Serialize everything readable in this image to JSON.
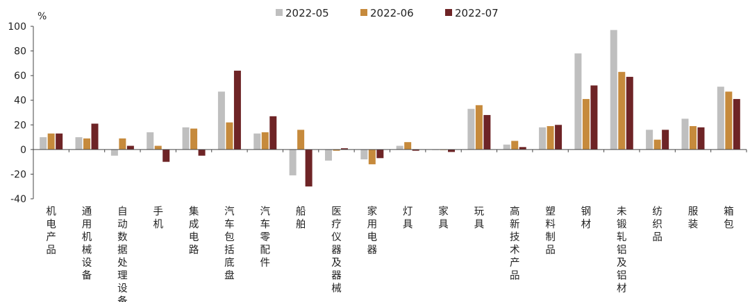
{
  "chart_data": {
    "type": "bar",
    "title": "",
    "ylabel": "%",
    "xlabel": "",
    "ylim": [
      -40,
      100
    ],
    "yticks": [
      -40,
      -20,
      0,
      20,
      40,
      60,
      80,
      100
    ],
    "yticks_labels": [
      "-40",
      "-20",
      "0",
      "20",
      "40",
      "60",
      "80",
      "100"
    ],
    "grid": false,
    "legend_position": "top-center",
    "categories": [
      "机电产品",
      "通用机械设备",
      "自动数据处理设备",
      "手机",
      "集成电路",
      "汽车包括底盘",
      "汽车零配件",
      "船舶",
      "医疗仪器及器械",
      "家用电器",
      "灯具",
      "家具",
      "玩具",
      "高新技术产品",
      "塑料制品",
      "钢材",
      "未锻轧铝及铝材",
      "纺织品",
      "服装",
      "箱包"
    ],
    "series": [
      {
        "name": "2022-05",
        "color": "#BFBFBF",
        "values": [
          10,
          10,
          -5,
          14,
          18,
          47,
          13,
          -21,
          -9,
          -8,
          3,
          0,
          33,
          4,
          18,
          78,
          97,
          16,
          25,
          51
        ]
      },
      {
        "name": "2022-06",
        "color": "#C68A3C",
        "values": [
          13,
          9,
          9,
          3,
          17,
          22,
          14,
          16,
          -1,
          -12,
          6,
          0,
          36,
          7,
          19,
          41,
          63,
          8,
          19,
          47
        ]
      },
      {
        "name": "2022-07",
        "color": "#6E2426",
        "values": [
          13,
          21,
          3,
          -10,
          -5,
          64,
          27,
          -30,
          1,
          -7,
          -1,
          -2,
          28,
          2,
          20,
          52,
          59,
          16,
          18,
          41
        ]
      }
    ]
  }
}
